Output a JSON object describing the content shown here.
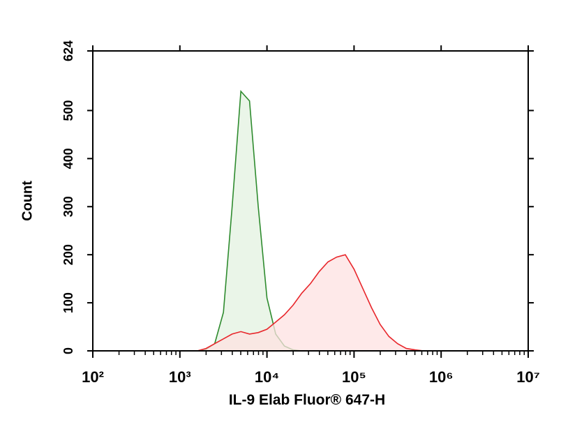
{
  "chart_data": {
    "type": "area",
    "xlabel": "IL-9 Elab Fluor® 647-H",
    "ylabel": "Count",
    "xscale": "log",
    "xlim": [
      100,
      10000000
    ],
    "xticks": [
      {
        "value": 100,
        "label": "10²"
      },
      {
        "value": 1000,
        "label": "10³"
      },
      {
        "value": 10000,
        "label": "10⁴"
      },
      {
        "value": 100000,
        "label": "10⁵"
      },
      {
        "value": 1000000,
        "label": "10⁶"
      },
      {
        "value": 10000000,
        "label": "10⁷"
      }
    ],
    "ylim": [
      0,
      624
    ],
    "yticks": [
      0,
      100,
      200,
      300,
      400,
      500,
      624
    ],
    "x": [
      1585,
      1995,
      2512,
      3162,
      3981,
      5012,
      6310,
      7943,
      10000,
      12589,
      15849,
      19953,
      25119,
      31623,
      39811,
      50119,
      63096,
      79433,
      100000,
      125893,
      158489,
      199526,
      251189,
      316228,
      398107,
      501187,
      630957
    ],
    "series": [
      {
        "color": "#2e8b2e",
        "fill": "#e3f1e0",
        "values": [
          0,
          3,
          15,
          80,
          300,
          540,
          520,
          300,
          110,
          35,
          10,
          2,
          0,
          0,
          0,
          0,
          0,
          0,
          0,
          0,
          0,
          0,
          0,
          0,
          0,
          0,
          0
        ]
      },
      {
        "color": "#e8262b",
        "fill": "#fde2e2",
        "values": [
          0,
          5,
          15,
          25,
          35,
          40,
          35,
          38,
          45,
          60,
          75,
          95,
          120,
          140,
          165,
          185,
          195,
          200,
          170,
          130,
          90,
          55,
          30,
          15,
          5,
          2,
          0
        ]
      }
    ]
  }
}
